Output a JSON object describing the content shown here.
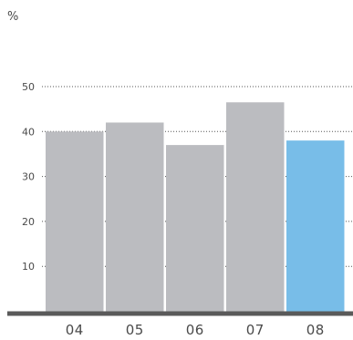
{
  "chart_data": {
    "type": "bar",
    "ylabel": "%",
    "categories": [
      "04",
      "05",
      "06",
      "07",
      "08"
    ],
    "values": [
      40,
      42,
      37,
      46.5,
      38
    ],
    "ylim": [
      0,
      50
    ],
    "yticks": [
      10,
      20,
      30,
      40,
      50
    ],
    "grid": true,
    "colors": {
      "default": "#bbbcc0",
      "highlight": "#78bde8",
      "axis": "#5a5a5a",
      "text": "#4a4a4a"
    },
    "highlight_index": 4
  }
}
